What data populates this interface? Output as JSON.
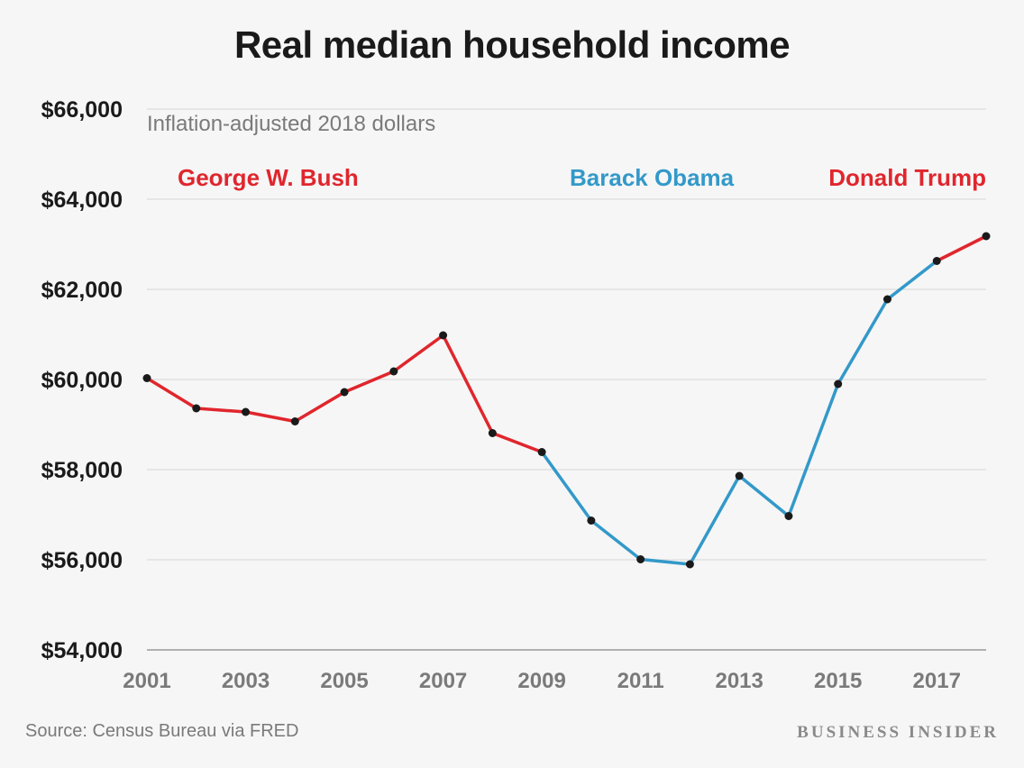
{
  "page": {
    "title": "Real median household income",
    "source": "Source: Census Bureau via FRED",
    "brand": "BUSINESS INSIDER"
  },
  "colors": {
    "background": "#f6f6f6",
    "republican": "#e0262d",
    "democrat": "#3399c9",
    "marker": "#1a1a1a",
    "grid": "#dcdcdc",
    "axis_text": "#1a1a1a",
    "x_tick_text": "#7a7a7a",
    "subtitle_text": "#7a7a7a"
  },
  "chart_data": {
    "type": "line",
    "title": "Real median household income",
    "subtitle": "Inflation-adjusted 2018 dollars",
    "xlabel": "",
    "ylabel": "",
    "x": [
      2001,
      2002,
      2003,
      2004,
      2005,
      2006,
      2007,
      2008,
      2009,
      2010,
      2011,
      2012,
      2013,
      2014,
      2015,
      2016,
      2017,
      2018
    ],
    "values": [
      60030,
      59360,
      59280,
      59070,
      59720,
      60180,
      60980,
      58810,
      58390,
      56870,
      56010,
      55900,
      57860,
      56970,
      59900,
      61780,
      62630,
      63180
    ],
    "xlim": [
      2001,
      2018
    ],
    "ylim": [
      54000,
      66000
    ],
    "y_ticks": [
      54000,
      56000,
      58000,
      60000,
      62000,
      64000,
      66000
    ],
    "y_tick_labels": [
      "$54,000",
      "$56,000",
      "$58,000",
      "$60,000",
      "$62,000",
      "$64,000",
      "$66,000"
    ],
    "x_ticks": [
      2001,
      2003,
      2005,
      2007,
      2009,
      2011,
      2013,
      2015,
      2017
    ],
    "x_tick_labels": [
      "2001",
      "2003",
      "2005",
      "2007",
      "2009",
      "2011",
      "2013",
      "2015",
      "2017"
    ],
    "grid": true,
    "segments": [
      {
        "name": "George W. Bush",
        "party": "republican",
        "from": 2001,
        "to": 2009
      },
      {
        "name": "Barack Obama",
        "party": "democrat",
        "from": 2009,
        "to": 2017
      },
      {
        "name": "Donald Trump",
        "party": "republican",
        "from": 2017,
        "to": 2018
      }
    ]
  }
}
